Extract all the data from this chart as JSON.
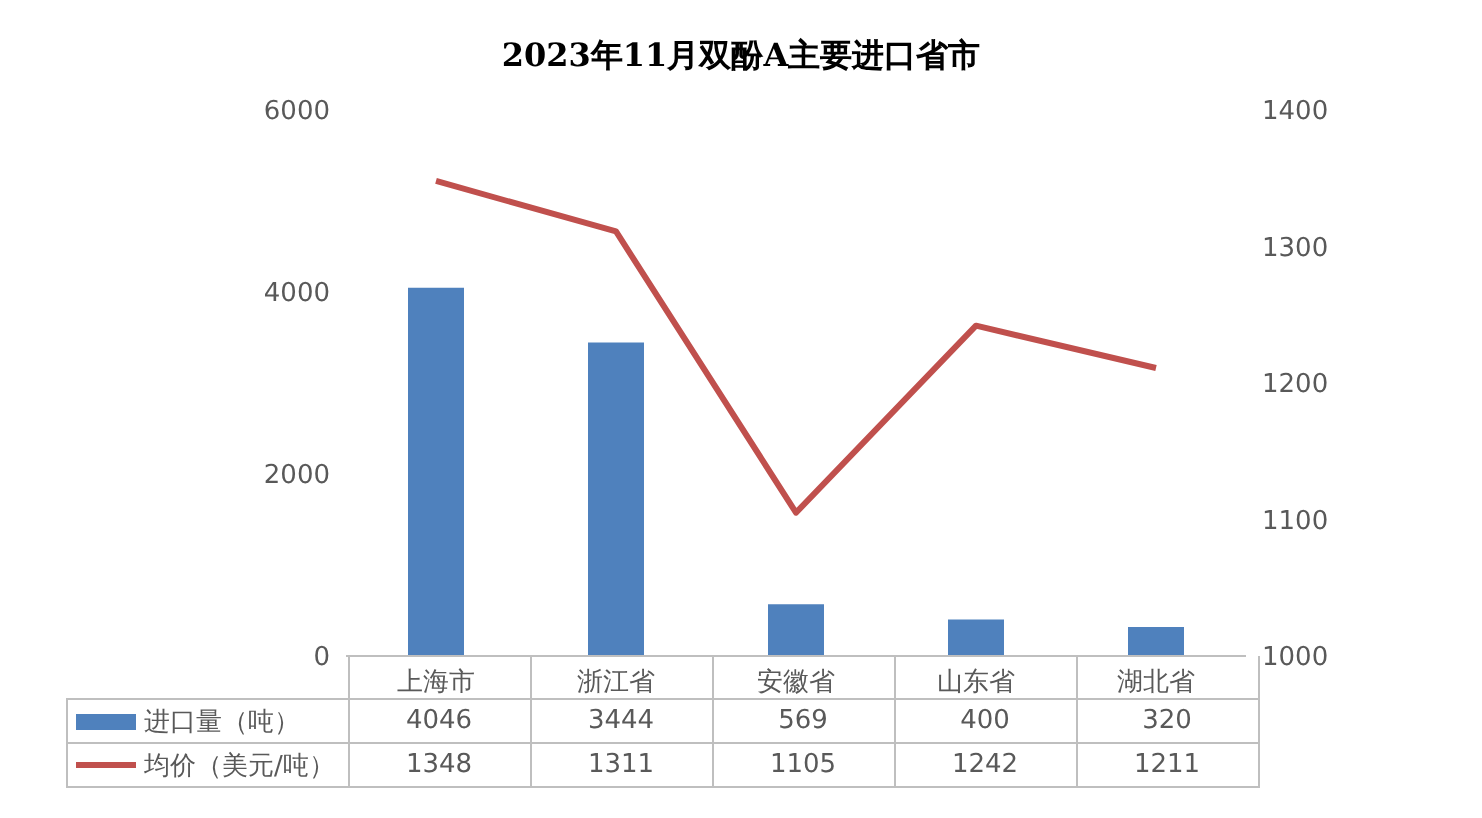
{
  "chart_data": {
    "type": "bar",
    "title": "2023年11月双酚A主要进口省市",
    "categories": [
      "上海市",
      "浙江省",
      "安徽省",
      "山东省",
      "湖北省"
    ],
    "series": [
      {
        "name": "进口量（吨）",
        "color": "#4f81bd",
        "values": [
          4046,
          3444,
          569,
          400,
          320
        ]
      },
      {
        "name": "均价（美元/吨）",
        "type": "line",
        "axis": "y2",
        "color": "#c0504d",
        "values": [
          1348,
          1311,
          1105,
          1242,
          1211
        ]
      }
    ],
    "ylim": [
      0,
      6000
    ],
    "yticks": [
      0,
      2000,
      4000,
      6000
    ],
    "y2lim": [
      1000,
      1400
    ],
    "y2ticks": [
      1000,
      1100,
      1200,
      1300,
      1400
    ],
    "grid": false,
    "legend": "bottom",
    "marker": "none",
    "data_labels": true
  }
}
